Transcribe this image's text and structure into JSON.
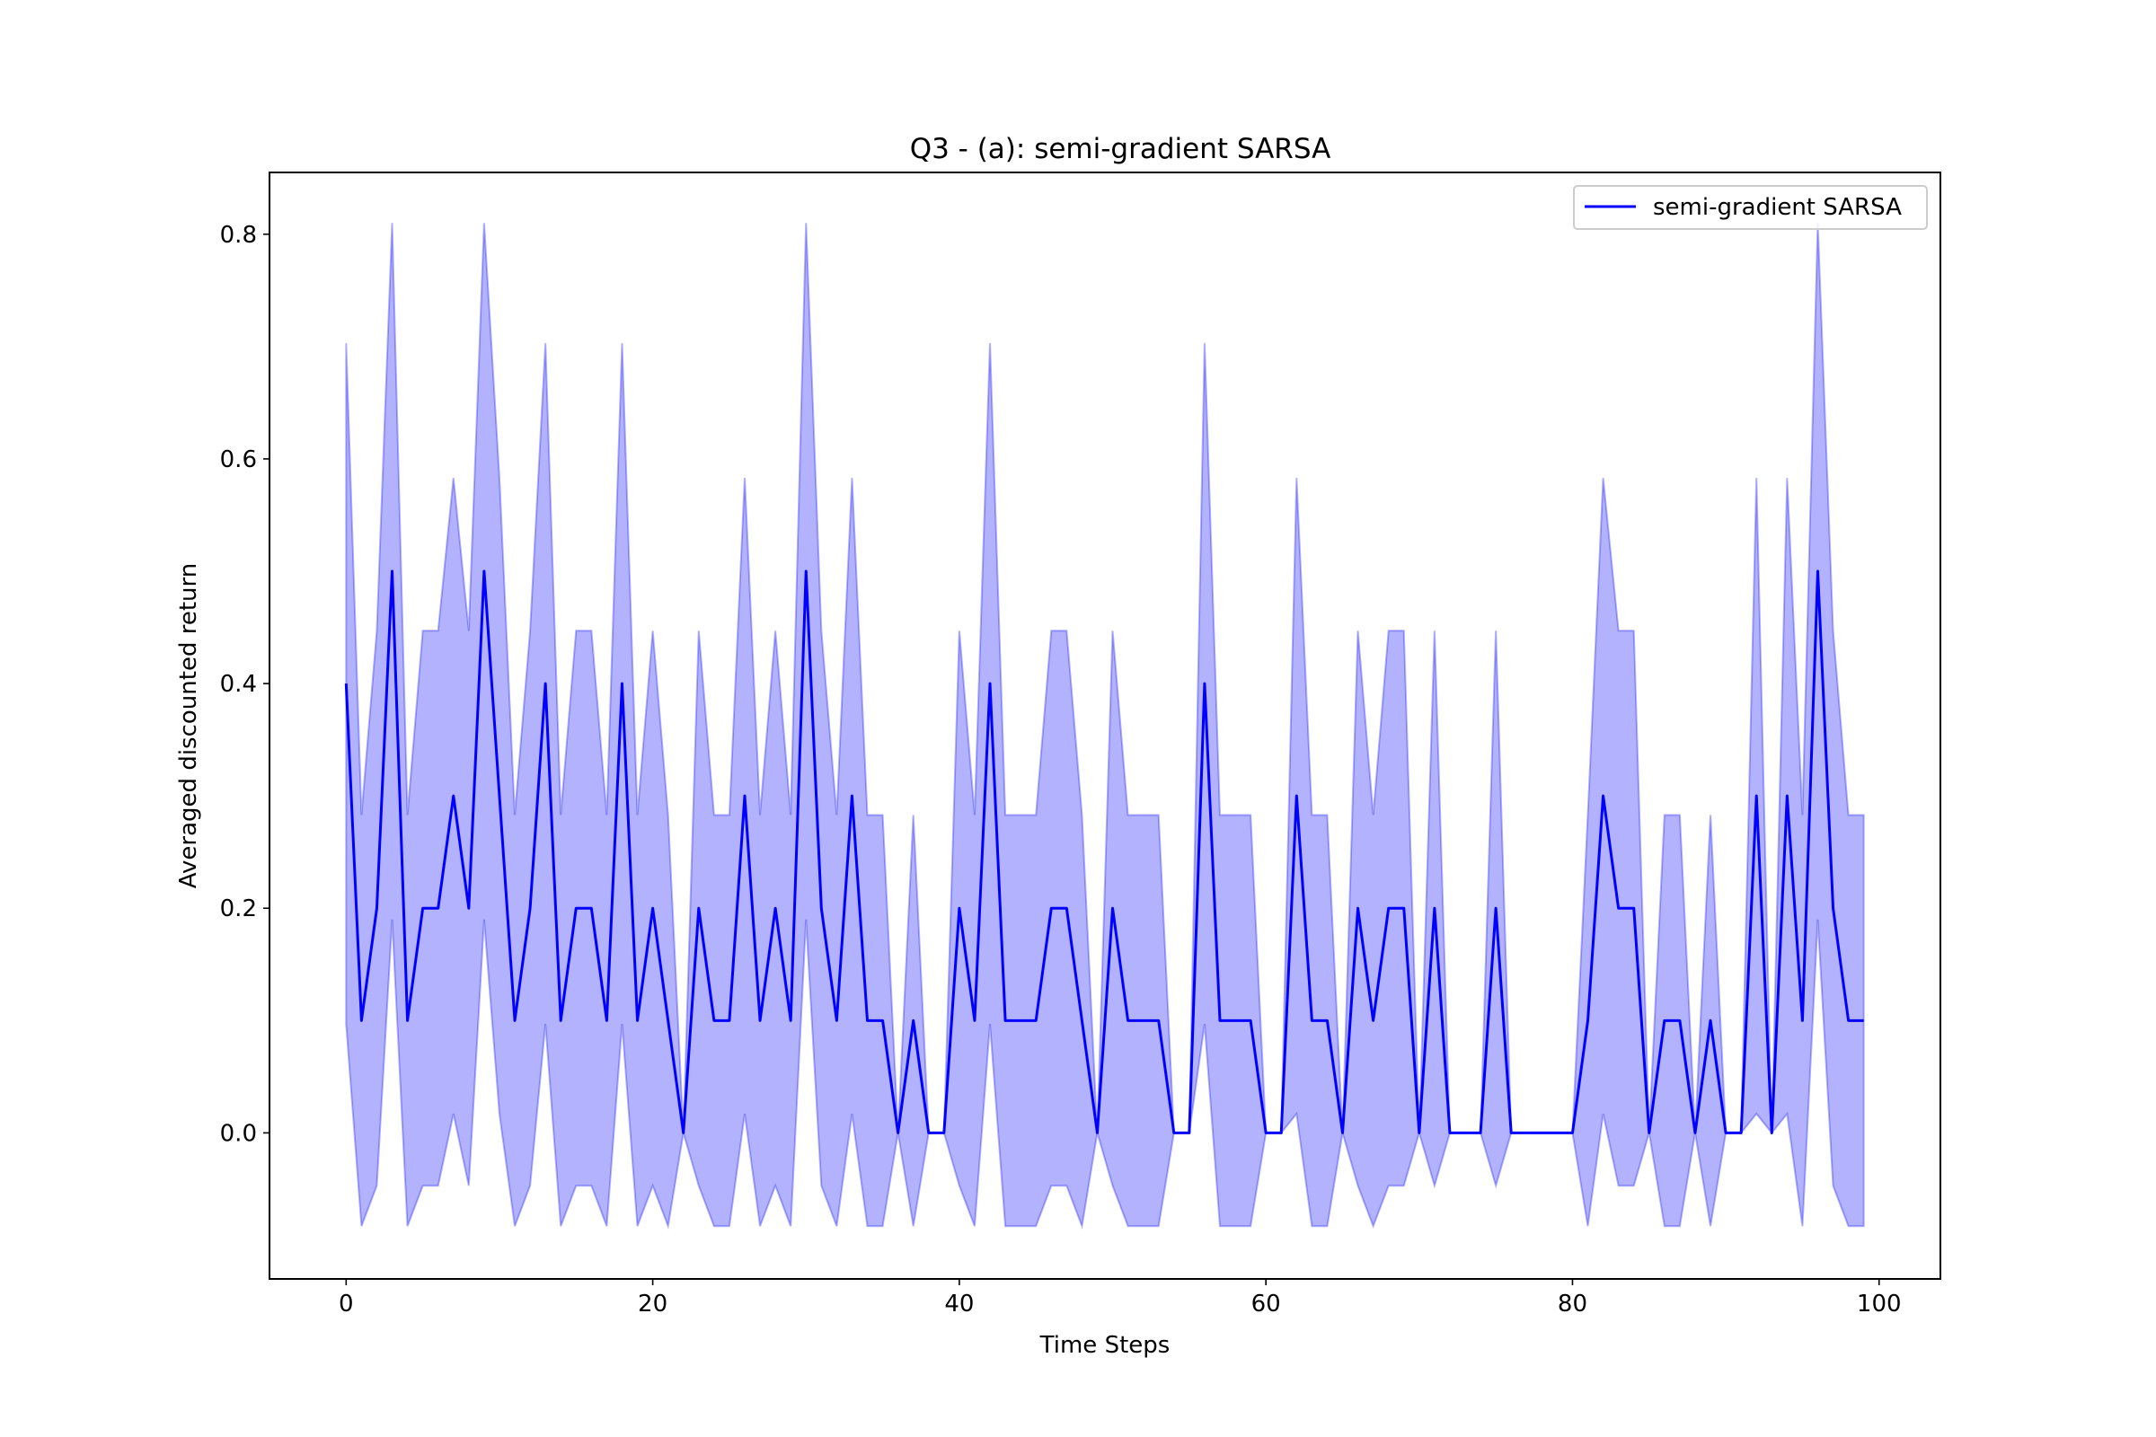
{
  "chart_data": {
    "type": "line",
    "title": "Q3 - (a): semi-gradient SARSA",
    "xlabel": "Time Steps",
    "ylabel": "Averaged discounted return",
    "xlim": [
      -5,
      104
    ],
    "ylim": [
      -0.13,
      0.855
    ],
    "xticks": [
      0,
      20,
      40,
      60,
      80,
      100
    ],
    "xtick_labels": [
      "0",
      "20",
      "40",
      "60",
      "80",
      "100"
    ],
    "yticks": [
      0.0,
      0.2,
      0.4,
      0.6,
      0.8
    ],
    "ytick_labels": [
      "0.0",
      "0.2",
      "0.4",
      "0.6",
      "0.8"
    ],
    "grid": false,
    "legend_position": "top-right",
    "line_color": "#0000ff",
    "band_color": "#0000ff",
    "series": [
      {
        "name": "semi-gradient SARSA",
        "x": [
          0,
          1,
          2,
          3,
          4,
          5,
          6,
          7,
          8,
          9,
          10,
          11,
          12,
          13,
          14,
          15,
          16,
          17,
          18,
          19,
          20,
          21,
          22,
          23,
          24,
          25,
          26,
          27,
          28,
          29,
          30,
          31,
          32,
          33,
          34,
          35,
          36,
          37,
          38,
          39,
          40,
          41,
          42,
          43,
          44,
          45,
          46,
          47,
          48,
          49,
          50,
          51,
          52,
          53,
          54,
          55,
          56,
          57,
          58,
          59,
          60,
          61,
          62,
          63,
          64,
          65,
          66,
          67,
          68,
          69,
          70,
          71,
          72,
          73,
          74,
          75,
          76,
          77,
          78,
          79,
          80,
          81,
          82,
          83,
          84,
          85,
          86,
          87,
          88,
          89,
          90,
          91,
          92,
          93,
          94,
          95,
          96,
          97,
          98,
          99
        ],
        "values": [
          0.4,
          0.1,
          0.2,
          0.5,
          0.1,
          0.2,
          0.2,
          0.3,
          0.2,
          0.5,
          0.3,
          0.1,
          0.2,
          0.4,
          0.1,
          0.2,
          0.2,
          0.1,
          0.4,
          0.1,
          0.2,
          0.1,
          0.0,
          0.2,
          0.1,
          0.1,
          0.3,
          0.1,
          0.2,
          0.1,
          0.5,
          0.2,
          0.1,
          0.3,
          0.1,
          0.1,
          0.0,
          0.1,
          0.0,
          0.0,
          0.2,
          0.1,
          0.4,
          0.1,
          0.1,
          0.1,
          0.2,
          0.2,
          0.1,
          0.0,
          0.2,
          0.1,
          0.1,
          0.1,
          0.0,
          0.0,
          0.4,
          0.1,
          0.1,
          0.1,
          0.0,
          0.0,
          0.3,
          0.1,
          0.1,
          0.0,
          0.2,
          0.1,
          0.2,
          0.2,
          0.0,
          0.2,
          0.0,
          0.0,
          0.0,
          0.2,
          0.0,
          0.0,
          0.0,
          0.0,
          0.0,
          0.1,
          0.3,
          0.2,
          0.2,
          0.0,
          0.1,
          0.1,
          0.0,
          0.1,
          0.0,
          0.0,
          0.3,
          0.0,
          0.3,
          0.1,
          0.5,
          0.2,
          0.1,
          0.1
        ],
        "upper": [
          0.703,
          0.283,
          0.447,
          0.81,
          0.283,
          0.447,
          0.447,
          0.583,
          0.447,
          0.81,
          0.583,
          0.283,
          0.447,
          0.703,
          0.283,
          0.447,
          0.447,
          0.283,
          0.703,
          0.283,
          0.447,
          0.283,
          0.0,
          0.447,
          0.283,
          0.283,
          0.583,
          0.283,
          0.447,
          0.283,
          0.81,
          0.447,
          0.283,
          0.583,
          0.283,
          0.283,
          0.0,
          0.283,
          0.0,
          0.0,
          0.447,
          0.283,
          0.703,
          0.283,
          0.283,
          0.283,
          0.447,
          0.447,
          0.283,
          0.0,
          0.447,
          0.283,
          0.283,
          0.283,
          0.0,
          0.0,
          0.703,
          0.283,
          0.283,
          0.283,
          0.0,
          0.0,
          0.583,
          0.283,
          0.283,
          0.0,
          0.447,
          0.283,
          0.447,
          0.447,
          0.0,
          0.447,
          0.0,
          0.0,
          0.0,
          0.447,
          0.0,
          0.0,
          0.0,
          0.0,
          0.0,
          0.283,
          0.583,
          0.447,
          0.447,
          0.0,
          0.283,
          0.283,
          0.0,
          0.283,
          0.0,
          0.0,
          0.583,
          0.0,
          0.583,
          0.283,
          0.81,
          0.447,
          0.283,
          0.283
        ],
        "lower": [
          0.097,
          -0.083,
          -0.047,
          0.19,
          -0.083,
          -0.047,
          -0.047,
          0.017,
          -0.047,
          0.19,
          0.017,
          -0.083,
          -0.047,
          0.097,
          -0.083,
          -0.047,
          -0.047,
          -0.083,
          0.097,
          -0.083,
          -0.047,
          -0.083,
          0.0,
          -0.047,
          -0.083,
          -0.083,
          0.017,
          -0.083,
          -0.047,
          -0.083,
          0.19,
          -0.047,
          -0.083,
          0.017,
          -0.083,
          -0.083,
          0.0,
          -0.083,
          0.0,
          0.0,
          -0.047,
          -0.083,
          0.097,
          -0.083,
          -0.083,
          -0.083,
          -0.047,
          -0.047,
          -0.083,
          0.0,
          -0.047,
          -0.083,
          -0.083,
          -0.083,
          0.0,
          0.0,
          0.097,
          -0.083,
          -0.083,
          -0.083,
          0.0,
          0.0,
          0.017,
          -0.083,
          -0.083,
          0.0,
          -0.047,
          -0.083,
          -0.047,
          -0.047,
          0.0,
          -0.047,
          0.0,
          0.0,
          0.0,
          -0.047,
          0.0,
          0.0,
          0.0,
          0.0,
          0.0,
          -0.083,
          0.017,
          -0.047,
          -0.047,
          0.0,
          -0.083,
          -0.083,
          0.0,
          -0.083,
          0.0,
          0.0,
          0.017,
          0.0,
          0.017,
          -0.083,
          0.19,
          -0.047,
          -0.083,
          -0.083
        ]
      }
    ]
  }
}
